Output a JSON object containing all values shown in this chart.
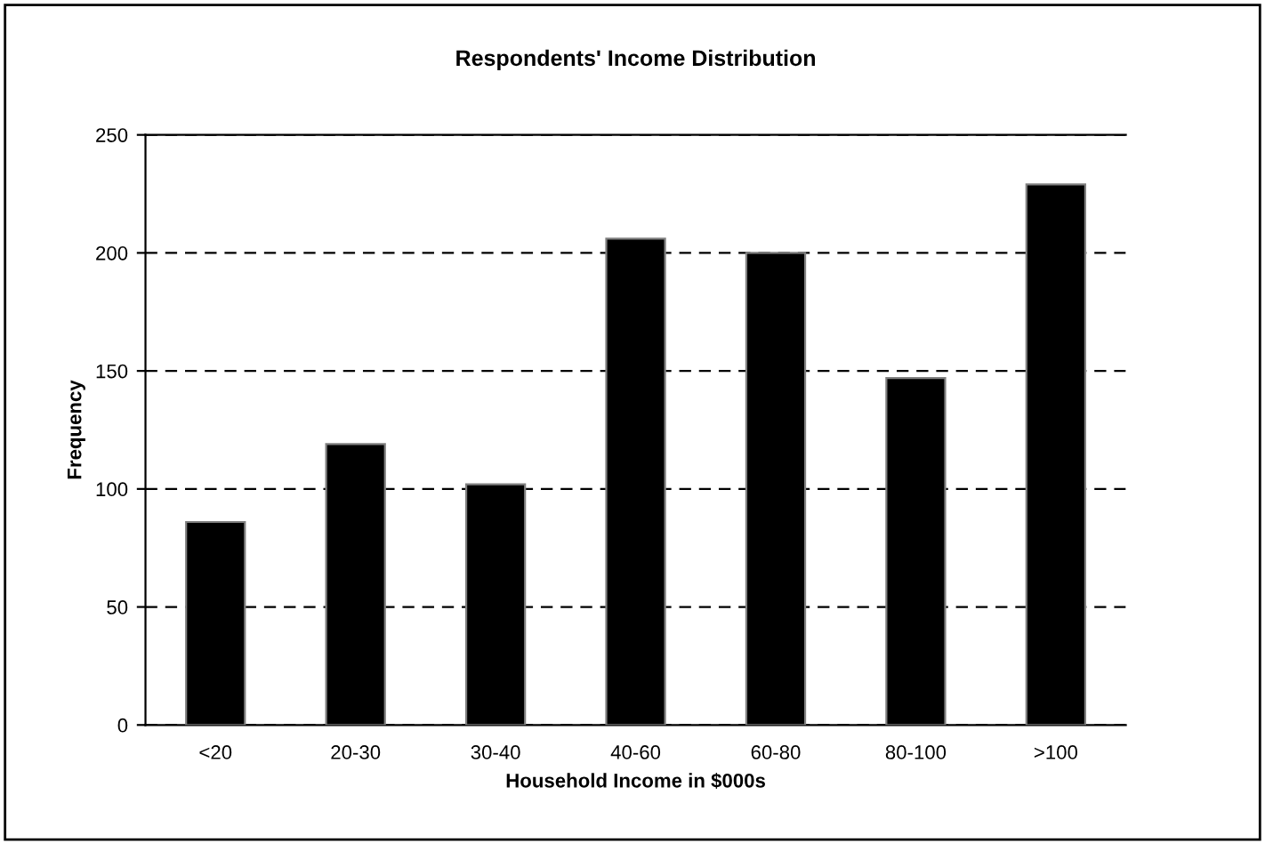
{
  "chart_data": {
    "type": "bar",
    "title": "Respondents' Income Distribution",
    "xlabel": "Household Income in $000s",
    "ylabel": "Frequency",
    "categories": [
      "<20",
      "20-30",
      "30-40",
      "40-60",
      "60-80",
      "80-100",
      ">100"
    ],
    "values": [
      86,
      119,
      102,
      206,
      200,
      147,
      229
    ],
    "color": "#000000",
    "ylim": [
      0,
      250
    ],
    "yticks": [
      0,
      50,
      100,
      150,
      200,
      250
    ],
    "grid": "y"
  }
}
